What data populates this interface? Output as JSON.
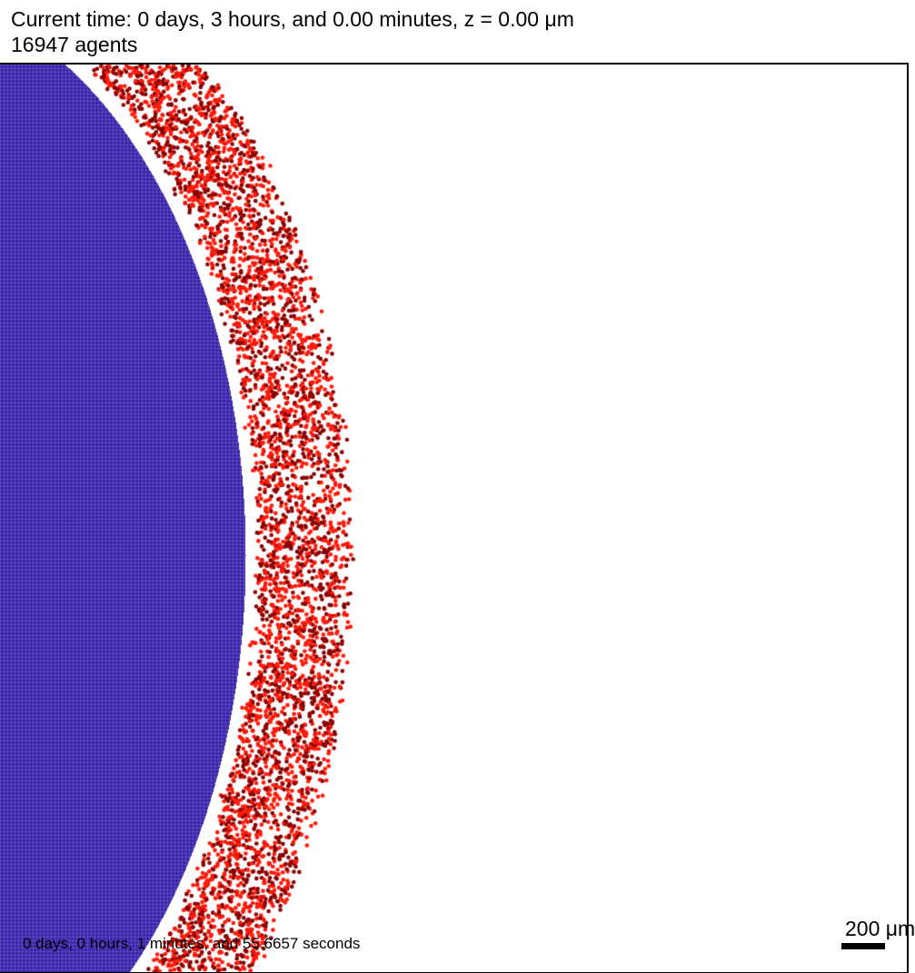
{
  "header": {
    "time_text": "Current time: 0 days, 3 hours, and 0.00 minutes, z = 0.00 μm",
    "agents_text": "16947 agents"
  },
  "plot": {
    "elapsed_text": "0 days, 0 hours, 1 minutes, and 55.6657 seconds",
    "scale_bar_label": "200 μm"
  },
  "colors": {
    "core_cells": "#3a22a8",
    "core_lines": "#8b84e0",
    "shell_cells_light": "#ff1a0a",
    "shell_cells_dark": "#8a0000",
    "background": "#ffffff",
    "frame": "#000000"
  }
}
